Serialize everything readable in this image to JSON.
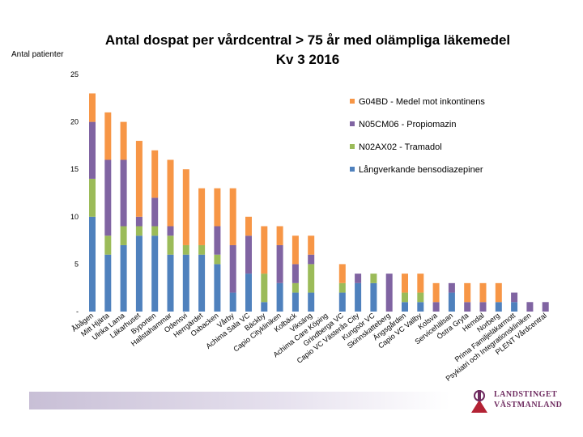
{
  "chart_data": {
    "type": "bar",
    "stacked": true,
    "title": [
      "Antal dospat per vårdcentral > 75 år med olämpliga läkemedel",
      "Kv 3 2016"
    ],
    "ylabel": "Antal patienter",
    "ylim": [
      0,
      25
    ],
    "yticks": [
      {
        "value": 0,
        "label": "-"
      },
      {
        "value": 5,
        "label": "5"
      },
      {
        "value": 10,
        "label": "10"
      },
      {
        "value": 15,
        "label": "15"
      },
      {
        "value": 20,
        "label": "20"
      },
      {
        "value": 25,
        "label": "25"
      }
    ],
    "legend_position": "top-right",
    "categories": [
      "Åbågen",
      "Mitt Hjärta",
      "Ulrika Lama",
      "Läkarhuset",
      "Byporten",
      "Hallstahammar",
      "Odensvi",
      "Herrgärdet",
      "Oxbacken",
      "Vårby",
      "Achima Sala VC",
      "Bäckby",
      "Capio Citykliniken",
      "Kolbäck",
      "Viksäng",
      "Achima Care Köping",
      "Grindberga VC",
      "Capio VC Västerås City",
      "Kungsör VC",
      "Skinnskatteberg",
      "Ängsgården",
      "Capio VC Vallby",
      "Kolsva",
      "Servicehälsan",
      "Östra Gryta",
      "Hemdal",
      "Norberg",
      "Prima Familjeläkarmott",
      "Psykiatri och Integrationskliniken",
      "PLENT Vårdcentral"
    ],
    "series": [
      {
        "name": "Långverkande bensodiazepiner",
        "color": "#4f81bd",
        "values": [
          10,
          6,
          7,
          8,
          8,
          6,
          6,
          6,
          5,
          2,
          4,
          1,
          3,
          2,
          2,
          0,
          2,
          3,
          3,
          0,
          1,
          1,
          0,
          2,
          0,
          0,
          1,
          1,
          0,
          0
        ]
      },
      {
        "name": "N02AX02 - Tramadol",
        "color": "#9bbb59",
        "values": [
          4,
          2,
          2,
          1,
          1,
          2,
          1,
          1,
          1,
          0,
          0,
          3,
          0,
          1,
          3,
          0,
          1,
          0,
          1,
          0,
          1,
          1,
          0,
          0,
          0,
          0,
          0,
          0,
          0,
          0
        ]
      },
      {
        "name": "N05CM06 - Propiomazin",
        "color": "#8064a2",
        "values": [
          6,
          8,
          7,
          1,
          3,
          1,
          0,
          0,
          3,
          5,
          4,
          0,
          4,
          2,
          1,
          0,
          0,
          1,
          0,
          4,
          0,
          0,
          1,
          1,
          1,
          1,
          0,
          1,
          1,
          1
        ]
      },
      {
        "name": "G04BD - Medel mot inkontinens",
        "color": "#f79646",
        "values": [
          3,
          5,
          4,
          8,
          5,
          7,
          8,
          6,
          4,
          6,
          2,
          5,
          2,
          3,
          2,
          0,
          2,
          0,
          0,
          0,
          2,
          2,
          2,
          0,
          2,
          2,
          2,
          0,
          0,
          0
        ]
      }
    ],
    "legend_order": [
      "G04BD - Medel mot inkontinens",
      "N05CM06 - Propiomazin",
      "N02AX02 - Tramadol",
      "Långverkande bensodiazepiner"
    ]
  },
  "logo": {
    "line1": "LANDSTINGET",
    "line2": "VÄSTMANLAND"
  }
}
